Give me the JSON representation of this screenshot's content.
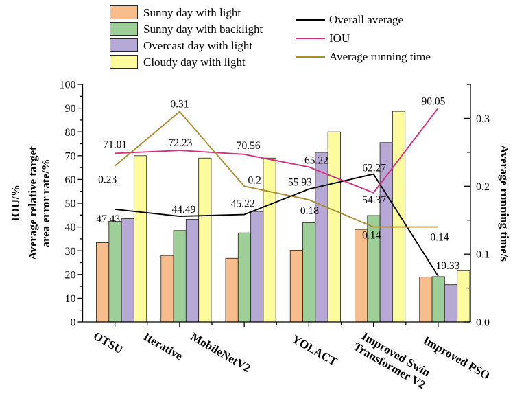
{
  "figure": {
    "background": "#ffffff"
  },
  "legend": {
    "bars": [
      {
        "label": "Sunny day with light",
        "color": "#F8BD8D"
      },
      {
        "label": "Sunny day with backlight",
        "color": "#9FCF99"
      },
      {
        "label": "Overcast day with light",
        "color": "#B7A9D5"
      },
      {
        "label": "Cloudy day with light",
        "color": "#FCFC9E"
      }
    ],
    "lines": [
      {
        "label": "Overall average",
        "color": "#000000"
      },
      {
        "label": "IOU",
        "color": "#D23080"
      },
      {
        "label": "Average running time",
        "color": "#AD8C2E"
      }
    ]
  },
  "chart_data": {
    "type": "bar",
    "subtype": "grouped-bars-with-lines",
    "categories": [
      "OTSU",
      "Iterative",
      "MobileNetV2",
      "YOLACT",
      "Improved Swin\nTransformer V2",
      "Improved PSO"
    ],
    "bar_series": [
      {
        "name": "Sunny day with light",
        "color": "#F8BD8D",
        "values": [
          33.4,
          28.0,
          26.8,
          30.2,
          39.0,
          18.9
        ]
      },
      {
        "name": "Sunny day with backlight",
        "color": "#9FCF99",
        "values": [
          42.3,
          38.5,
          37.5,
          41.8,
          44.8,
          19.1
        ]
      },
      {
        "name": "Overcast day with light",
        "color": "#B7A9D5",
        "values": [
          43.5,
          43.2,
          46.5,
          71.4,
          75.5,
          15.7
        ]
      },
      {
        "name": "Cloudy day with light",
        "color": "#FCFC9E",
        "values": [
          70.0,
          69.0,
          69.0,
          80.0,
          88.7,
          21.6
        ]
      }
    ],
    "line_series": [
      {
        "name": "Overall average",
        "axis": "left",
        "color": "#000000",
        "values": [
          47.43,
          44.49,
          45.22,
          55.93,
          62.27,
          19.33
        ],
        "labels": [
          "47.43",
          "44.49",
          "45.22",
          "55.93",
          "62.27",
          "19.33"
        ]
      },
      {
        "name": "IOU",
        "axis": "left",
        "color": "#D23080",
        "values": [
          71.01,
          72.23,
          70.56,
          65.22,
          54.37,
          90.05
        ],
        "labels": [
          "71.01",
          "72.23",
          "70.56",
          "65.22",
          "54.37",
          "90.05"
        ]
      },
      {
        "name": "Average running time",
        "axis": "right",
        "color": "#AD8C2E",
        "values": [
          0.23,
          0.31,
          0.2,
          0.18,
          0.14,
          0.14
        ],
        "labels": [
          "0.23",
          "0.31",
          "0.2",
          "0.18",
          "0.14",
          "0.14"
        ]
      }
    ],
    "axes": {
      "left": {
        "titles": [
          "IOU/%",
          "Average relative target\narea error rate/%"
        ],
        "min": 0,
        "max": 100,
        "major": 10,
        "minor": 5,
        "tick_labels": [
          "0",
          "10",
          "20",
          "30",
          "40",
          "50",
          "60",
          "70",
          "80",
          "90",
          "100"
        ]
      },
      "right": {
        "title": "Average running time/s",
        "min": 0,
        "max": 0.35,
        "major": 0.1,
        "minor": 0.05,
        "tick_labels": [
          "0.0",
          "0.1",
          "0.2",
          "0.3"
        ]
      },
      "bottom": {
        "grid": false
      }
    },
    "title": ""
  }
}
